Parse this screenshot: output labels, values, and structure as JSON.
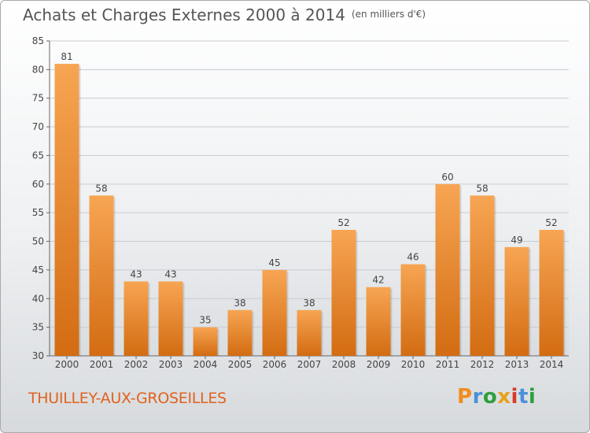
{
  "header": {
    "title": "Achats et Charges Externes 2000 à 2014",
    "unit": "(en milliers d'€)"
  },
  "footer": {
    "city": "THUILLEY-AUX-GROSEILLES",
    "logo_letters": [
      "P",
      "r",
      "o",
      "x",
      "i",
      "t",
      "i"
    ],
    "logo_colors": [
      "#f28c1c",
      "#4a90d9",
      "#2e9e3e",
      "#e8a21a",
      "#d93a2b",
      "#4a90d9",
      "#2e9e3e"
    ]
  },
  "colors": {
    "bar_top": "#f7a553",
    "bar_bottom": "#d36c12",
    "axis_text": "#444444",
    "title_text": "#555555",
    "city_text": "#e0621c"
  },
  "chart_data": {
    "type": "bar",
    "categories": [
      "2000",
      "2001",
      "2002",
      "2003",
      "2004",
      "2005",
      "2006",
      "2007",
      "2008",
      "2009",
      "2010",
      "2011",
      "2012",
      "2013",
      "2014"
    ],
    "values": [
      81,
      58,
      43,
      43,
      35,
      38,
      45,
      38,
      52,
      42,
      46,
      60,
      58,
      49,
      52
    ],
    "title": "Achats et Charges Externes 2000 à 2014",
    "subtitle": "(en milliers d'€)",
    "ylim": [
      30,
      85
    ],
    "yticks": [
      30,
      35,
      40,
      45,
      50,
      55,
      60,
      65,
      70,
      75,
      80,
      85
    ],
    "grid": true,
    "data_labels": true
  }
}
